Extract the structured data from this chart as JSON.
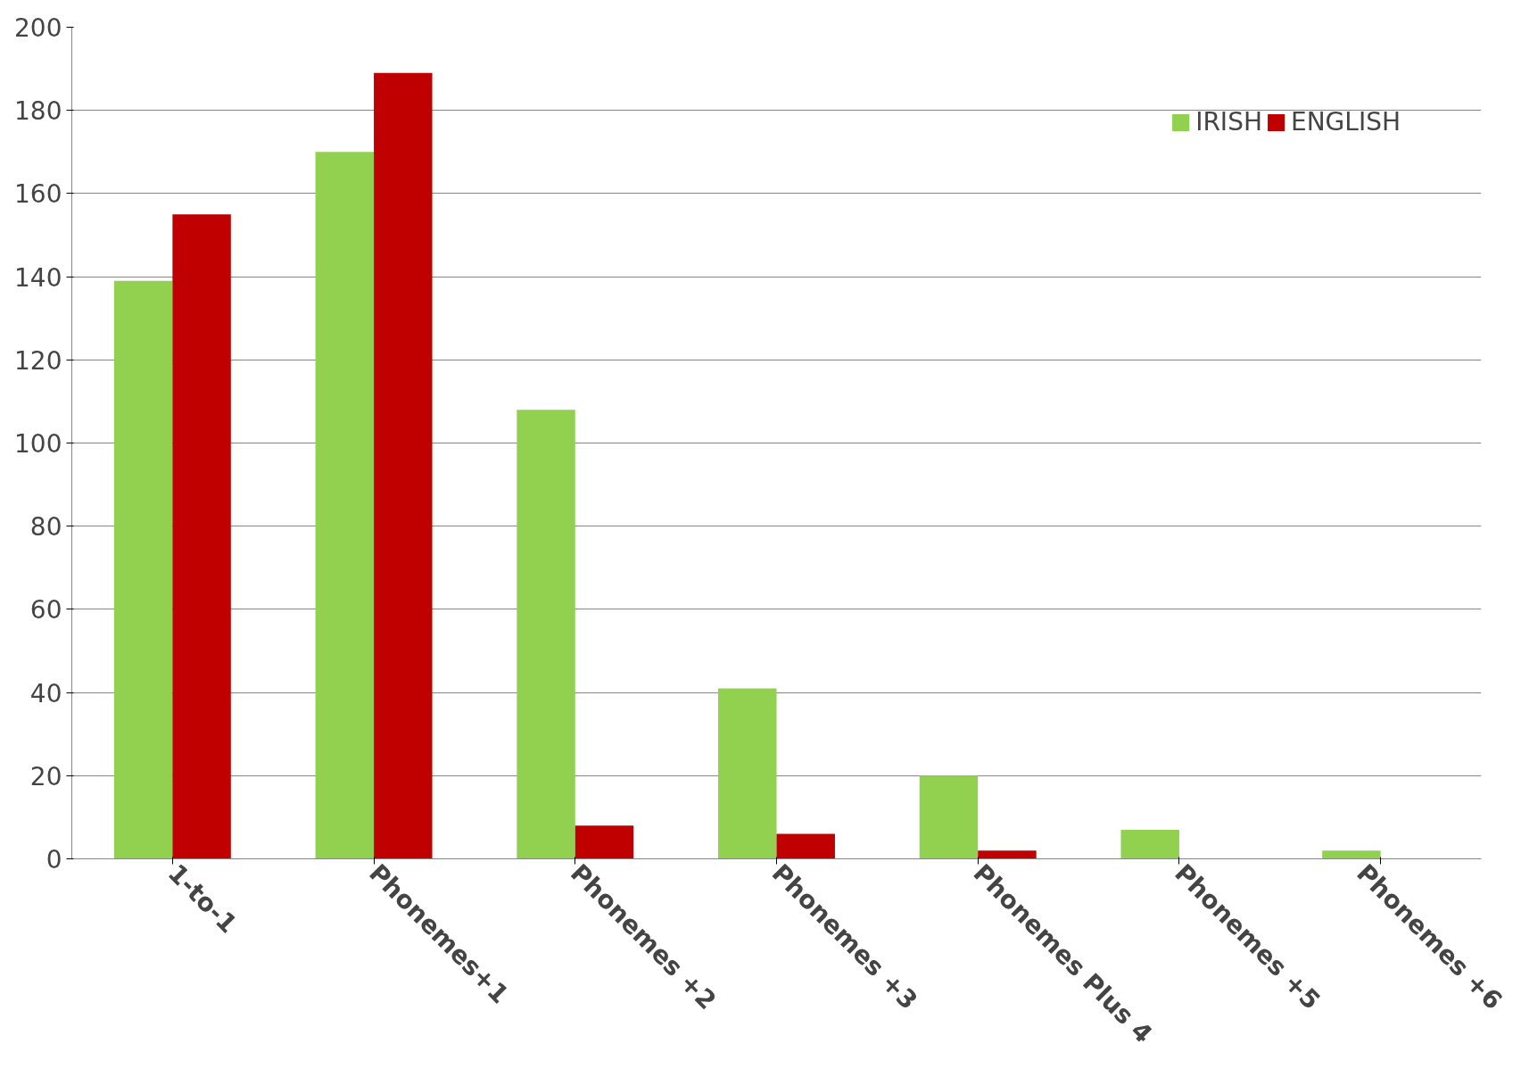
{
  "chart_data": {
    "type": "bar",
    "categories": [
      "1-to-1",
      "Phonemes+1",
      "Phonemes +2",
      "Phonemes +3",
      "Phonemes Plus 4",
      "Phonemes +5",
      "Phonemes +6"
    ],
    "series": [
      {
        "name": "IRISH",
        "color": "#92d050",
        "values": [
          139,
          170,
          108,
          41,
          20,
          7,
          2
        ]
      },
      {
        "name": "ENGLISH",
        "color": "#c00000",
        "values": [
          155,
          189,
          8,
          6,
          2,
          0,
          0
        ]
      }
    ],
    "ylim": [
      0,
      200
    ],
    "yticks": [
      0,
      20,
      40,
      60,
      80,
      100,
      120,
      140,
      160,
      180,
      200
    ],
    "grid": "y",
    "legend": "top right"
  }
}
